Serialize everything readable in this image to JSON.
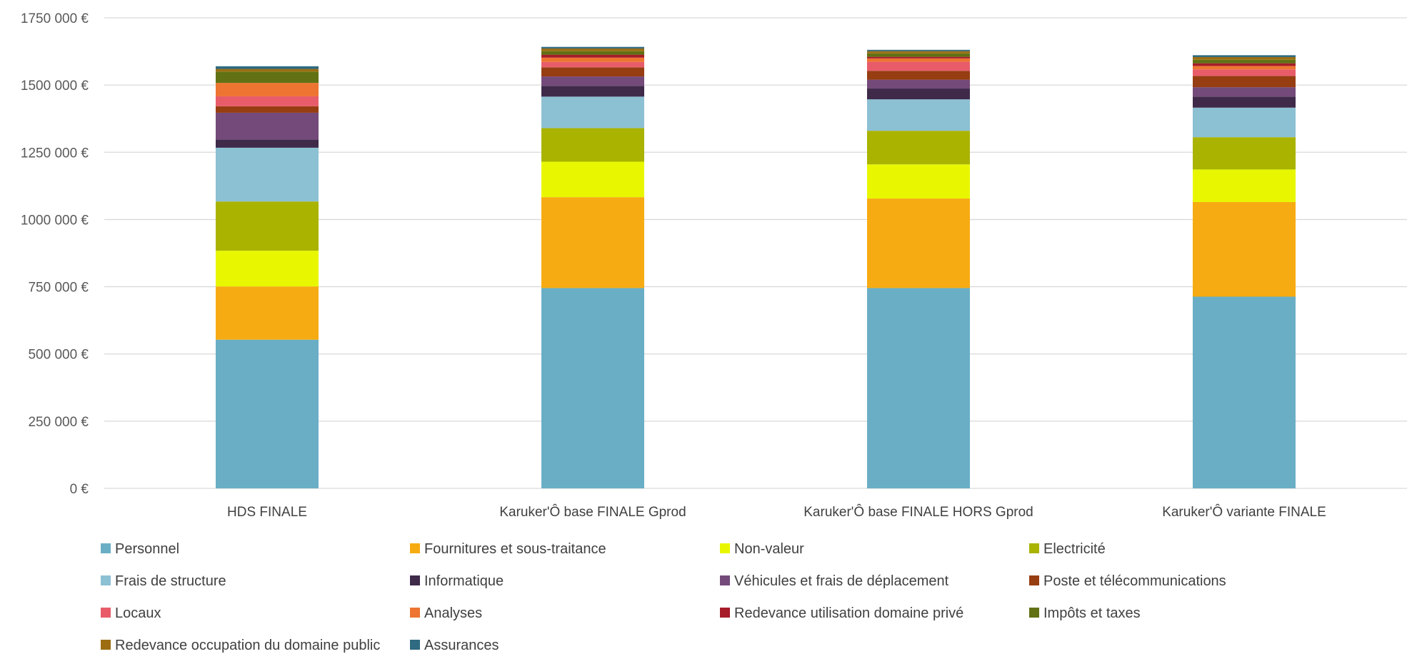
{
  "chart_data": {
    "type": "bar",
    "stacked": true,
    "categories": [
      "HDS FINALE",
      "Karuker'Ô base FINALE Gprod",
      "Karuker'Ô base FINALE HORS Gprod",
      "Karuker'Ô variante FINALE"
    ],
    "ylim": [
      0,
      1750000
    ],
    "yticks": [
      {
        "value": 0,
        "label": "0 €"
      },
      {
        "value": 250000,
        "label": "250 000 €"
      },
      {
        "value": 500000,
        "label": "500 000 €"
      },
      {
        "value": 750000,
        "label": "750 000 €"
      },
      {
        "value": 1000000,
        "label": "1000 000 €"
      },
      {
        "value": 1250000,
        "label": "1250 000 €"
      },
      {
        "value": 1500000,
        "label": "1500 000 €"
      },
      {
        "value": 1750000,
        "label": "1750 000 €"
      }
    ],
    "grid": true,
    "legend_position": "bottom",
    "series": [
      {
        "name": "Personnel",
        "color": "#6aaec6",
        "values": [
          553000,
          745000,
          745000,
          713000
        ]
      },
      {
        "name": "Fournitures et sous-traitance",
        "color": "#f7ab12",
        "values": [
          198000,
          338000,
          333000,
          352000
        ]
      },
      {
        "name": "Non-valeur",
        "color": "#e8f700",
        "values": [
          133000,
          132000,
          127000,
          121000
        ]
      },
      {
        "name": "Electricité",
        "color": "#a9b300",
        "values": [
          183000,
          125000,
          125000,
          120000
        ]
      },
      {
        "name": "Frais de structure",
        "color": "#8cc0d3",
        "values": [
          200000,
          117000,
          117000,
          110000
        ]
      },
      {
        "name": "Informatique",
        "color": "#3f2a4a",
        "values": [
          30000,
          40000,
          40000,
          41000
        ]
      },
      {
        "name": "Véhicules et frais de déplacement",
        "color": "#744a7a",
        "values": [
          100000,
          35000,
          33000,
          35000
        ]
      },
      {
        "name": "Poste et télécommunications",
        "color": "#973d12",
        "values": [
          24000,
          34000,
          33000,
          42000
        ]
      },
      {
        "name": "Locaux",
        "color": "#e85c6a",
        "values": [
          37000,
          20000,
          34000,
          24000
        ]
      },
      {
        "name": "Analyses",
        "color": "#ed7531",
        "values": [
          50000,
          16000,
          12000,
          13000
        ]
      },
      {
        "name": "Redevance utilisation domaine privé",
        "color": "#a61c29",
        "values": [
          0,
          11000,
          6000,
          10000
        ]
      },
      {
        "name": "Impôts et taxes",
        "color": "#617114",
        "values": [
          42000,
          13000,
          13000,
          13000
        ]
      },
      {
        "name": "Redevance occupation du domaine public",
        "color": "#9c6e11",
        "values": [
          10000,
          10000,
          8000,
          10000
        ]
      },
      {
        "name": "Assurances",
        "color": "#2f6a80",
        "values": [
          10000,
          6000,
          5000,
          7000
        ]
      }
    ]
  }
}
